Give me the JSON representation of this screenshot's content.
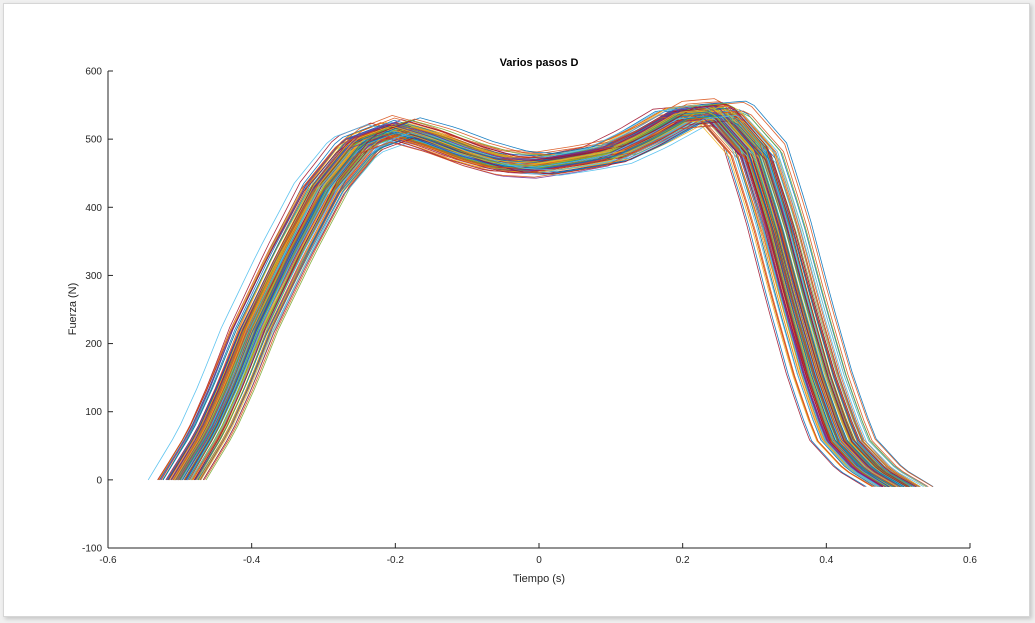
{
  "chart_data": {
    "type": "line",
    "title": "Varios pasos D",
    "xlabel": "Tiempo (s)",
    "ylabel": "Fuerza (N)",
    "xlim": [
      -0.6,
      0.6
    ],
    "ylim": [
      -100,
      600
    ],
    "xticks": [
      -0.6,
      -0.4,
      -0.2,
      0,
      0.2,
      0.4,
      0.6
    ],
    "xtick_labels": [
      "-0.6",
      "-0.4",
      "-0.2",
      "0",
      "0.2",
      "0.4",
      "0.6"
    ],
    "yticks": [
      -100,
      0,
      100,
      200,
      300,
      400,
      500,
      600
    ],
    "ytick_labels": [
      "-100",
      "0",
      "100",
      "200",
      "300",
      "400",
      "500",
      "600"
    ],
    "grid": false,
    "legend": "none",
    "series_count": 150,
    "template_x": [
      -0.5,
      -0.46,
      -0.43,
      -0.4,
      -0.35,
      -0.3,
      -0.25,
      -0.2,
      -0.15,
      -0.1,
      -0.05,
      0.0,
      0.05,
      0.1,
      0.15,
      0.2,
      0.25,
      0.3,
      0.33,
      0.36,
      0.39,
      0.42,
      0.46,
      0.5
    ],
    "template_y": [
      0,
      70,
      140,
      220,
      330,
      430,
      495,
      515,
      500,
      480,
      465,
      462,
      470,
      480,
      505,
      535,
      540,
      480,
      380,
      260,
      150,
      60,
      15,
      0
    ],
    "colors": [
      "#0072bd",
      "#d95319",
      "#edb120",
      "#7e2f8e",
      "#77ac30",
      "#4dbeee",
      "#a2142f"
    ]
  }
}
